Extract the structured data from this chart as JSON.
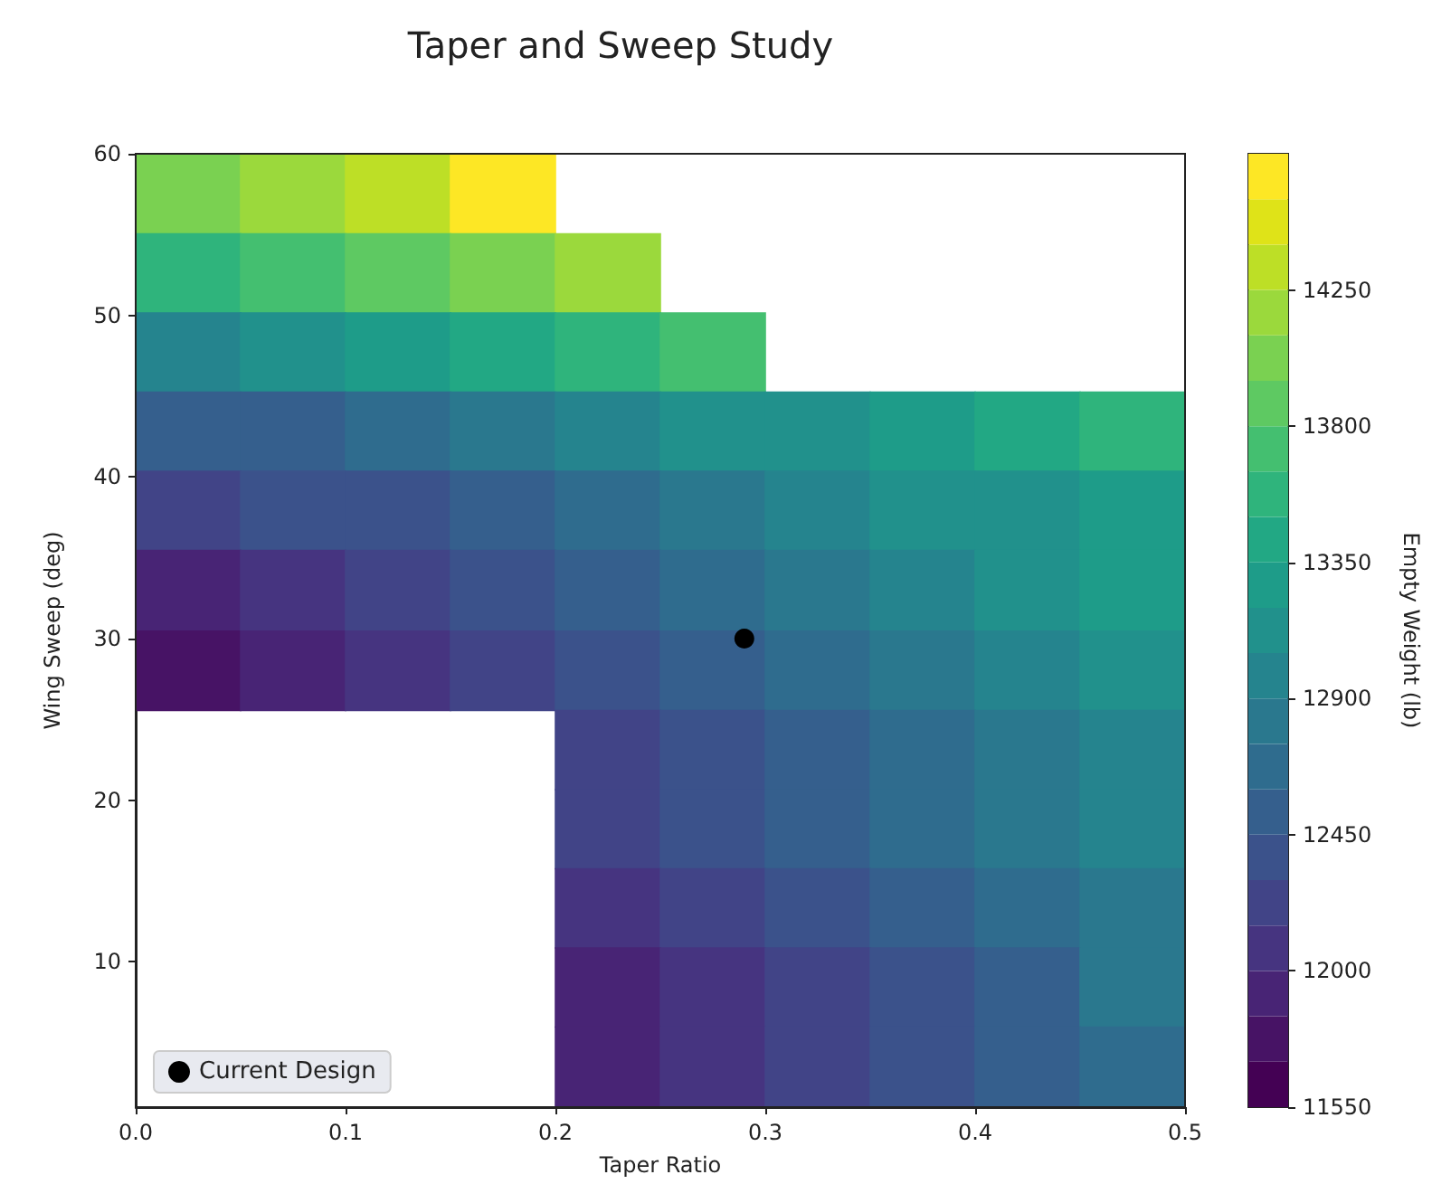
{
  "chart_data": {
    "type": "heatmap",
    "title": "Taper and Sweep Study",
    "xlabel": "Taper Ratio",
    "ylabel": "Wing Sweep (deg)",
    "clabel": "Empty Weight (lb)",
    "x": [
      0.025,
      0.075,
      0.125,
      0.175,
      0.225,
      0.275,
      0.325,
      0.375,
      0.425,
      0.475
    ],
    "y": [
      57.5,
      52.6,
      47.7,
      42.8,
      37.9,
      33.0,
      28.0,
      23.1,
      18.2,
      13.3,
      8.4,
      3.5
    ],
    "cells": [
      [
        13950,
        14150,
        14350,
        14550,
        null,
        null,
        null,
        null,
        null,
        null
      ],
      [
        13550,
        13700,
        13850,
        14000,
        14150,
        null,
        null,
        null,
        null,
        null
      ],
      [
        12950,
        13100,
        13250,
        13400,
        13550,
        13650,
        null,
        null,
        null,
        null
      ],
      [
        12460,
        12580,
        12700,
        12820,
        12950,
        13070,
        13190,
        13310,
        13430,
        13550
      ],
      [
        12200,
        12320,
        12440,
        12570,
        12690,
        12810,
        12930,
        13060,
        13180,
        13300
      ],
      [
        11950,
        12090,
        12230,
        12370,
        12510,
        12650,
        12790,
        12920,
        13060,
        13200
      ],
      [
        11720,
        11870,
        12020,
        12160,
        12310,
        12460,
        12610,
        12760,
        12900,
        13050
      ],
      [
        null,
        null,
        null,
        null,
        12250,
        12390,
        12530,
        12670,
        12810,
        12950
      ],
      [
        null,
        null,
        null,
        null,
        12150,
        12300,
        12450,
        12600,
        12750,
        12900
      ],
      [
        null,
        null,
        null,
        null,
        12050,
        12210,
        12370,
        12530,
        12690,
        12850
      ],
      [
        null,
        null,
        null,
        null,
        11950,
        12110,
        12270,
        12430,
        12590,
        12750
      ],
      [
        null,
        null,
        null,
        null,
        11850,
        12020,
        12190,
        12360,
        12530,
        12700
      ]
    ],
    "clim": [
      11550,
      14700
    ],
    "cticks": [
      11550,
      12000,
      12450,
      12900,
      13350,
      13800,
      14250
    ],
    "xlim": [
      0,
      0.5
    ],
    "xticks": [
      {
        "value": 0,
        "label": "0.0"
      },
      0.1,
      0.2,
      0.3,
      0.4,
      0.5
    ],
    "ylim": [
      1,
      60
    ],
    "yticks": [
      10,
      20,
      30,
      40,
      50,
      60
    ],
    "legend": "bottom left",
    "grid": false,
    "series": [
      {
        "type": "scatter",
        "name": "Current Design",
        "color": "#000000",
        "marker": "circle",
        "x": [
          0.29
        ],
        "values": [
          30
        ]
      }
    ]
  }
}
